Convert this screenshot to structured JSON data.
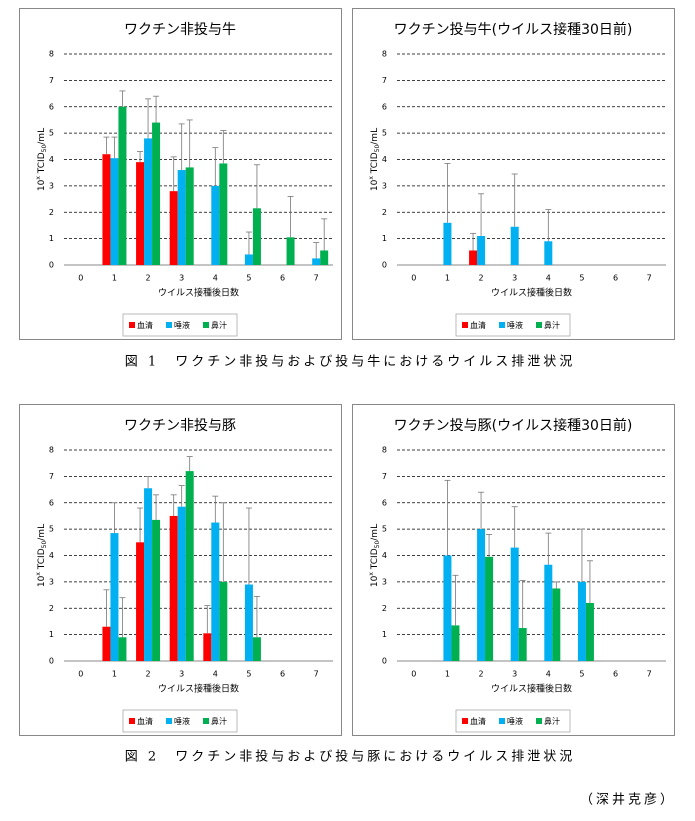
{
  "chart_data": [
    {
      "type": "bar",
      "title": "ワクチン非投与牛",
      "categories": [
        "0",
        "1",
        "2",
        "3",
        "4",
        "5",
        "6",
        "7"
      ],
      "series": [
        {
          "name": "血清",
          "color": "#ff0000",
          "values": [
            null,
            4.2,
            3.9,
            2.8,
            null,
            null,
            null,
            null
          ],
          "errors": [
            null,
            0.65,
            0.4,
            1.3,
            null,
            null,
            null,
            null
          ]
        },
        {
          "name": "唾液",
          "color": "#00b0f0",
          "values": [
            null,
            4.05,
            4.8,
            3.6,
            3.0,
            0.4,
            null,
            0.25
          ],
          "errors": [
            null,
            0.8,
            1.5,
            1.75,
            1.45,
            0.85,
            null,
            0.6
          ]
        },
        {
          "name": "鼻汁",
          "color": "#00b050",
          "values": [
            null,
            6.0,
            5.4,
            3.7,
            3.85,
            2.15,
            1.05,
            0.55
          ],
          "errors": [
            null,
            0.6,
            1.0,
            1.8,
            1.25,
            1.65,
            1.55,
            1.2
          ]
        }
      ],
      "ylim": [
        0,
        8
      ],
      "yticks": [
        0,
        1,
        2,
        3,
        4,
        5,
        6,
        7,
        8
      ],
      "grid": true,
      "xlabel": "ウイルス接種後日数",
      "ylabel_base": "10",
      "ylabel_exp": "x",
      "ylabel_mid": " TCID",
      "ylabel_sub": "50",
      "ylabel_unit": "/mL"
    },
    {
      "type": "bar",
      "title": "ワクチン投与牛(ウイルス接種30日前)",
      "categories": [
        "0",
        "1",
        "2",
        "3",
        "4",
        "5",
        "6",
        "7"
      ],
      "series": [
        {
          "name": "血清",
          "color": "#ff0000",
          "values": [
            null,
            null,
            0.55,
            null,
            null,
            null,
            null,
            null
          ],
          "errors": [
            null,
            null,
            0.65,
            null,
            null,
            null,
            null,
            null
          ]
        },
        {
          "name": "唾液",
          "color": "#00b0f0",
          "values": [
            null,
            1.6,
            1.1,
            1.45,
            0.9,
            null,
            null,
            null
          ],
          "errors": [
            null,
            2.25,
            1.6,
            2.0,
            1.2,
            null,
            null,
            null
          ]
        },
        {
          "name": "鼻汁",
          "color": "#00b050",
          "values": [
            null,
            null,
            null,
            null,
            null,
            null,
            null,
            null
          ],
          "errors": [
            null,
            null,
            null,
            null,
            null,
            null,
            null,
            null
          ]
        }
      ],
      "ylim": [
        0,
        8
      ],
      "yticks": [
        0,
        1,
        2,
        3,
        4,
        5,
        6,
        7,
        8
      ],
      "grid": true,
      "xlabel": "ウイルス接種後日数",
      "ylabel_base": "10",
      "ylabel_exp": "x",
      "ylabel_mid": " TCID",
      "ylabel_sub": "50",
      "ylabel_unit": "/mL"
    },
    {
      "type": "bar",
      "title": "ワクチン非投与豚",
      "categories": [
        "0",
        "1",
        "2",
        "3",
        "4",
        "5",
        "6",
        "7"
      ],
      "series": [
        {
          "name": "血清",
          "color": "#ff0000",
          "values": [
            null,
            1.3,
            4.5,
            5.5,
            1.05,
            null,
            null,
            null
          ],
          "errors": [
            null,
            1.4,
            1.3,
            0.8,
            1.05,
            null,
            null,
            null
          ]
        },
        {
          "name": "唾液",
          "color": "#00b0f0",
          "values": [
            null,
            4.85,
            6.55,
            5.85,
            5.25,
            2.9,
            null,
            null
          ],
          "errors": [
            null,
            1.15,
            0.45,
            0.8,
            1.0,
            2.9,
            null,
            null
          ]
        },
        {
          "name": "鼻汁",
          "color": "#00b050",
          "values": [
            null,
            0.9,
            5.35,
            7.2,
            3.0,
            0.9,
            null,
            null
          ],
          "errors": [
            null,
            1.5,
            0.95,
            0.55,
            3.0,
            1.55,
            null,
            null
          ]
        }
      ],
      "ylim": [
        0,
        8
      ],
      "yticks": [
        0,
        1,
        2,
        3,
        4,
        5,
        6,
        7,
        8
      ],
      "grid": true,
      "xlabel": "ウイルス接種後日数",
      "ylabel_base": "10",
      "ylabel_exp": "x",
      "ylabel_mid": " TCID",
      "ylabel_sub": "50",
      "ylabel_unit": "/mL"
    },
    {
      "type": "bar",
      "title": "ワクチン投与豚(ウイルス接種30日前)",
      "categories": [
        "0",
        "1",
        "2",
        "3",
        "4",
        "5",
        "6",
        "7"
      ],
      "series": [
        {
          "name": "血清",
          "color": "#ff0000",
          "values": [
            null,
            null,
            null,
            null,
            null,
            null,
            null,
            null
          ],
          "errors": [
            null,
            null,
            null,
            null,
            null,
            null,
            null,
            null
          ]
        },
        {
          "name": "唾液",
          "color": "#00b0f0",
          "values": [
            null,
            4.0,
            5.0,
            4.3,
            3.65,
            3.0,
            null,
            null
          ],
          "errors": [
            null,
            2.85,
            1.4,
            1.55,
            1.2,
            2.0,
            null,
            null
          ]
        },
        {
          "name": "鼻汁",
          "color": "#00b050",
          "values": [
            null,
            1.35,
            3.95,
            1.25,
            2.75,
            2.2,
            null,
            null
          ],
          "errors": [
            null,
            1.9,
            0.85,
            1.8,
            0.25,
            1.6,
            null,
            null
          ]
        }
      ],
      "ylim": [
        0,
        8
      ],
      "yticks": [
        0,
        1,
        2,
        3,
        4,
        5,
        6,
        7,
        8
      ],
      "grid": true,
      "xlabel": "ウイルス接種後日数",
      "ylabel_base": "10",
      "ylabel_exp": "x",
      "ylabel_mid": " TCID",
      "ylabel_sub": "50",
      "ylabel_unit": "/mL"
    }
  ],
  "captions": [
    "図 1　ワクチン非投与および投与牛におけるウイルス排泄状況",
    "図 2　ワクチン非投与および投与豚におけるウイルス排泄状況"
  ],
  "credit": "（深井克彦）"
}
